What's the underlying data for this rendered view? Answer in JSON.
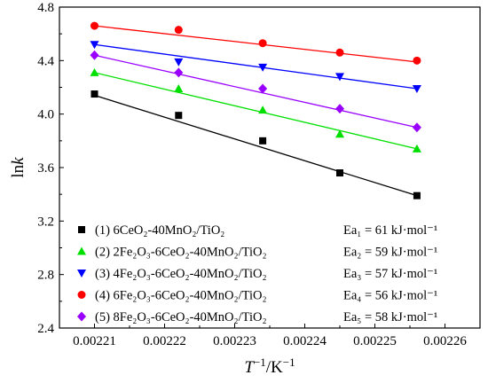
{
  "chart_data": {
    "type": "scatter",
    "xlabel": "T⁻¹/K⁻¹",
    "ylabel": "lnk",
    "xlim": [
      0.002205,
      0.002265
    ],
    "ylim": [
      2.4,
      4.8
    ],
    "x_ticks": [
      "0.00221",
      "0.00222",
      "0.00223",
      "0.00224",
      "0.00225",
      "0.00226"
    ],
    "y_ticks": [
      "2.4",
      "2.8",
      "3.2",
      "3.6",
      "4.0",
      "4.4",
      "4.8"
    ],
    "x": [
      0.00221,
      0.002222,
      0.002234,
      0.002245,
      0.002256
    ],
    "legend_position": "bottom-left",
    "series": [
      {
        "label": "(1) 6CeO₂-40MnO₂/TiO₂",
        "ea": "Ea₁ = 61 kJ·mol⁻¹",
        "color": "#000000",
        "marker": "square",
        "values": [
          4.15,
          3.99,
          3.8,
          3.56,
          3.39
        ],
        "fit": [
          4.14,
          3.39
        ]
      },
      {
        "label": "(2) 2Fe₂O₃-6CeO₂-40MnO₂/TiO₂",
        "ea": "Ea₂ = 59 kJ·mol⁻¹",
        "color": "#00e000",
        "marker": "triangle-up",
        "values": [
          4.31,
          4.19,
          4.03,
          3.85,
          3.74
        ],
        "fit": [
          4.31,
          3.74
        ]
      },
      {
        "label": "(3) 4Fe₂O₃-6CeO₂-40MnO₂/TiO₂",
        "ea": "Ea₃ = 57 kJ·mol⁻¹",
        "color": "#0000ff",
        "marker": "triangle-down",
        "values": [
          4.52,
          4.39,
          4.35,
          4.28,
          4.19
        ],
        "fit": [
          4.52,
          4.19
        ]
      },
      {
        "label": "(4) 6Fe₂O₃-6CeO₂-40MnO₂/TiO₂",
        "ea": "Ea₄ = 56 kJ·mol⁻¹",
        "color": "#ff0000",
        "marker": "circle",
        "values": [
          4.66,
          4.63,
          4.53,
          4.46,
          4.4
        ],
        "fit": [
          4.66,
          4.39
        ]
      },
      {
        "label": "(5) 8Fe₂O₃-6CeO₂-40MnO₂/TiO₂",
        "ea": "Ea₅ = 58 kJ·mol⁻¹",
        "color": "#9900ff",
        "marker": "diamond",
        "values": [
          4.44,
          4.31,
          4.19,
          4.04,
          3.9
        ],
        "fit": [
          4.44,
          3.9
        ]
      }
    ]
  }
}
